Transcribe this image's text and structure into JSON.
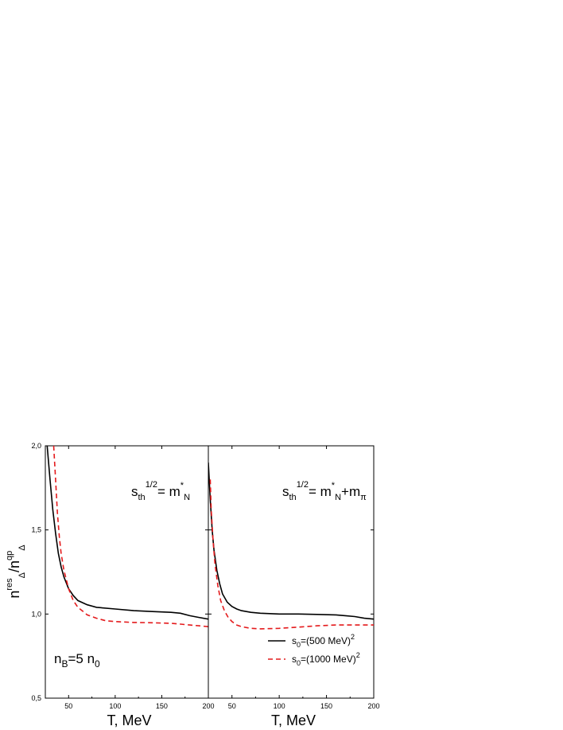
{
  "chart_data": [
    {
      "type": "line",
      "panel": "left",
      "annotation": {
        "s": "s",
        "sub": "th",
        "sup": "1/2",
        "eq": "= m",
        "star": "*",
        "sub2": "N",
        "tail": "",
        "tail_sub": ""
      },
      "note": {
        "base": "n",
        "sub": "B",
        "mid": "=5 n",
        "sub2": "0"
      },
      "xlabel": "T, MeV",
      "xlim": [
        25,
        200
      ],
      "ylim": [
        0.5,
        2.0
      ],
      "xticks": [
        "50",
        "100",
        "150",
        "200"
      ],
      "xtick_values": [
        50,
        100,
        150,
        200
      ],
      "series": [
        {
          "key": "solid",
          "style": "solid",
          "color": "#000000",
          "x": [
            27,
            30,
            33,
            36,
            39,
            42,
            45,
            50,
            55,
            60,
            70,
            80,
            100,
            120,
            140,
            160,
            170,
            180,
            190,
            200
          ],
          "y": [
            2.0,
            1.8,
            1.62,
            1.48,
            1.36,
            1.28,
            1.22,
            1.15,
            1.11,
            1.08,
            1.055,
            1.04,
            1.03,
            1.02,
            1.015,
            1.01,
            1.005,
            0.99,
            0.98,
            0.97
          ]
        },
        {
          "key": "dashed",
          "style": "dashed",
          "color": "#e41a1c",
          "x": [
            34,
            36,
            38,
            40,
            42,
            45,
            50,
            55,
            60,
            70,
            80,
            90,
            100,
            120,
            140,
            160,
            170,
            180,
            190,
            200
          ],
          "y": [
            2.0,
            1.8,
            1.6,
            1.46,
            1.36,
            1.26,
            1.15,
            1.08,
            1.04,
            0.995,
            0.975,
            0.96,
            0.955,
            0.95,
            0.948,
            0.945,
            0.94,
            0.935,
            0.93,
            0.925
          ]
        }
      ]
    },
    {
      "type": "line",
      "panel": "right",
      "annotation": {
        "s": "s",
        "sub": "th",
        "sup": "1/2",
        "eq": "= m",
        "star": "*",
        "sub2": "N",
        "tail": "+m",
        "tail_sub": "π"
      },
      "xlabel": "T, MeV",
      "xlim": [
        25,
        200
      ],
      "ylim": [
        0.5,
        2.0
      ],
      "xticks": [
        "50",
        "100",
        "150",
        "200"
      ],
      "xtick_values": [
        50,
        100,
        150,
        200
      ],
      "series": [
        {
          "key": "solid",
          "style": "solid",
          "color": "#000000",
          "x": [
            25,
            27,
            29,
            31,
            34,
            37,
            40,
            45,
            50,
            55,
            60,
            70,
            80,
            100,
            120,
            140,
            160,
            170,
            180,
            190,
            200
          ],
          "y": [
            1.9,
            1.68,
            1.5,
            1.38,
            1.26,
            1.18,
            1.12,
            1.07,
            1.045,
            1.03,
            1.02,
            1.01,
            1.005,
            1.0,
            1.0,
            0.998,
            0.995,
            0.99,
            0.985,
            0.975,
            0.97
          ]
        },
        {
          "key": "dashed",
          "style": "dashed",
          "color": "#e41a1c",
          "x": [
            27,
            28,
            30,
            32,
            35,
            38,
            42,
            46,
            50,
            55,
            60,
            70,
            80,
            100,
            120,
            140,
            160,
            180,
            200
          ],
          "y": [
            1.8,
            1.62,
            1.44,
            1.3,
            1.17,
            1.08,
            1.02,
            0.98,
            0.955,
            0.935,
            0.925,
            0.915,
            0.912,
            0.915,
            0.922,
            0.93,
            0.935,
            0.935,
            0.935
          ]
        }
      ]
    }
  ],
  "yaxis": {
    "label": {
      "n": "n",
      "sup1": "res",
      "sub1": "Δ",
      "slash": "/n",
      "sup2": "qp",
      "sub2": "Δ"
    },
    "ticks": [
      "0,5",
      "1,0",
      "1,5",
      "2,0"
    ],
    "tick_values": [
      0.5,
      1.0,
      1.5,
      2.0
    ]
  },
  "legend": [
    {
      "key": "solid",
      "base": "s",
      "sub": "0",
      "text": "=(500 MeV)",
      "sup": "2"
    },
    {
      "key": "dashed",
      "base": "s",
      "sub": "0",
      "text": "=(1000 MeV)",
      "sup": "2"
    }
  ]
}
